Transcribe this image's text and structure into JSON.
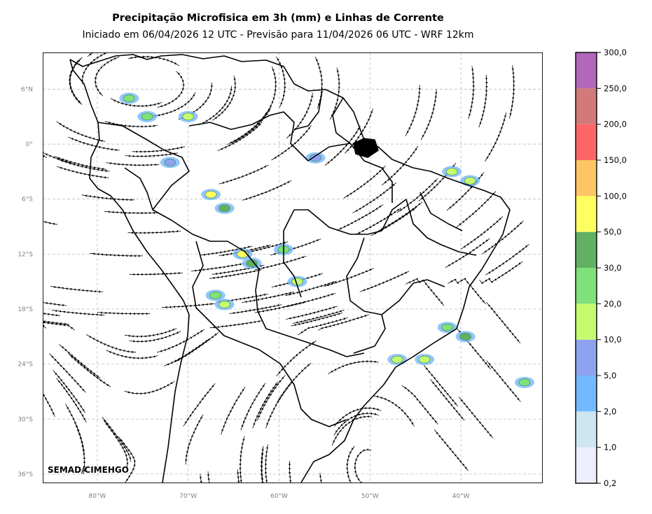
{
  "title": "Precipitação Microfisica em 3h (mm) e Linhas de Corrente",
  "subtitle": "Iniciado em 06/04/2026 12 UTC - Previsão para 11/04/2026 06 UTC - WRF 12km",
  "credit": "SEMAD/CIMEHGO",
  "lat_labels": [
    "6°N",
    "0°",
    "6°S",
    "12°S",
    "18°S",
    "24°S",
    "30°S",
    "36°S"
  ],
  "lon_labels": [
    "80°W",
    "70°W",
    "60°W",
    "50°W",
    "40°W"
  ],
  "colorbar": {
    "levels": [
      "0,2",
      "1,0",
      "2,0",
      "5,0",
      "10,0",
      "20,0",
      "30,0",
      "50,0",
      "100,0",
      "150,0",
      "200,0",
      "250,0",
      "300,0"
    ],
    "colors": [
      "#ededfb",
      "#cde6ef",
      "#74b9fd",
      "#8ea3f0",
      "#c6fb6f",
      "#80e07a",
      "#62b064",
      "#fefe61",
      "#fec565",
      "#fe6666",
      "#d27a7a",
      "#b267bb"
    ]
  },
  "chart_data": {
    "type": "map",
    "projection": "lat-lon",
    "lon_range": [
      -86,
      -31
    ],
    "lat_range": [
      -37,
      10
    ],
    "grid": true,
    "field": "microphysical precipitation 3h (mm) with streamlines",
    "precip_cells": [
      {
        "lon": -76.5,
        "lat": 5,
        "class": "20,0"
      },
      {
        "lon": -74.5,
        "lat": 3,
        "class": "20,0"
      },
      {
        "lon": -67.5,
        "lat": -5.5,
        "class": "50,0"
      },
      {
        "lon": -66,
        "lat": -7,
        "class": "30,0"
      },
      {
        "lon": -64,
        "lat": -12,
        "class": "50,0"
      },
      {
        "lon": -63,
        "lat": -13,
        "class": "30,0"
      },
      {
        "lon": -59.5,
        "lat": -11.5,
        "class": "20,0"
      },
      {
        "lon": -58,
        "lat": -15,
        "class": "10,0"
      },
      {
        "lon": -67,
        "lat": -16.5,
        "class": "20,0"
      },
      {
        "lon": -66,
        "lat": -17.5,
        "class": "10,0"
      },
      {
        "lon": -41.5,
        "lat": -20,
        "class": "20,0"
      },
      {
        "lon": -39.5,
        "lat": -21,
        "class": "30,0"
      },
      {
        "lon": -47,
        "lat": -23.5,
        "class": "10,0"
      },
      {
        "lon": -44,
        "lat": -23.5,
        "class": "10,0"
      },
      {
        "lon": -33,
        "lat": -26,
        "class": "20,0"
      },
      {
        "lon": -41,
        "lat": -3,
        "class": "10,0"
      },
      {
        "lon": -39,
        "lat": -4,
        "class": "10,0"
      },
      {
        "lon": -56,
        "lat": -1.5,
        "class": "5,0"
      },
      {
        "lon": -70,
        "lat": 3,
        "class": "10,0"
      },
      {
        "lon": -72,
        "lat": -2,
        "class": "5,0"
      }
    ]
  }
}
